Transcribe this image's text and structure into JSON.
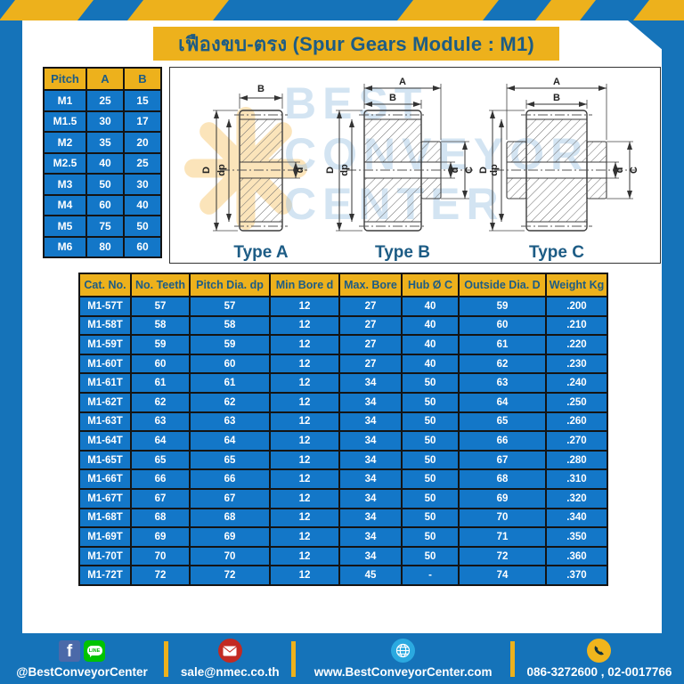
{
  "page": {
    "title": "เฟืองขบ-ตรง (Spur Gears Module : M1)"
  },
  "colors": {
    "frame_blue": "#1573B9",
    "cell_blue": "#1377C8",
    "accent_yellow": "#EDB11C",
    "dark_blue_text": "#1D5C85",
    "table_border": "#141414",
    "facebook_blue": "#4B69A9",
    "line_green": "#00C300",
    "email_red": "#C22A23",
    "globe_blue": "#2BA9E0",
    "phone_yellow": "#F0B51D"
  },
  "pitch_table": {
    "headers": [
      "Pitch",
      "A",
      "B"
    ],
    "rows": [
      [
        "M1",
        "25",
        "15"
      ],
      [
        "M1.5",
        "30",
        "17"
      ],
      [
        "M2",
        "35",
        "20"
      ],
      [
        "M2.5",
        "40",
        "25"
      ],
      [
        "M3",
        "50",
        "30"
      ],
      [
        "M4",
        "60",
        "40"
      ],
      [
        "M5",
        "75",
        "50"
      ],
      [
        "M6",
        "80",
        "60"
      ]
    ]
  },
  "diagrams": {
    "types": [
      {
        "label": "Type A"
      },
      {
        "label": "Type B"
      },
      {
        "label": "Type C"
      }
    ],
    "dims": {
      "A": "A",
      "B": "B",
      "C": "C",
      "D": "D",
      "d": "d",
      "dp": "dp"
    },
    "watermark": {
      "line1": "BEST",
      "line2": "CONVEYOR",
      "line3": "CENTER"
    }
  },
  "main_table": {
    "headers": [
      "Cat. No.",
      "No. Teeth",
      "Pitch Dia. dp",
      "Min Bore d",
      "Max. Bore",
      "Hub Ø C",
      "Outside Dia. D",
      "Weight Kg"
    ],
    "rows": [
      [
        "M1-57T",
        "57",
        "57",
        "12",
        "27",
        "40",
        "59",
        ".200"
      ],
      [
        "M1-58T",
        "58",
        "58",
        "12",
        "27",
        "40",
        "60",
        ".210"
      ],
      [
        "M1-59T",
        "59",
        "59",
        "12",
        "27",
        "40",
        "61",
        ".220"
      ],
      [
        "M1-60T",
        "60",
        "60",
        "12",
        "27",
        "40",
        "62",
        ".230"
      ],
      [
        "M1-61T",
        "61",
        "61",
        "12",
        "34",
        "50",
        "63",
        ".240"
      ],
      [
        "M1-62T",
        "62",
        "62",
        "12",
        "34",
        "50",
        "64",
        ".250"
      ],
      [
        "M1-63T",
        "63",
        "63",
        "12",
        "34",
        "50",
        "65",
        ".260"
      ],
      [
        "M1-64T",
        "64",
        "64",
        "12",
        "34",
        "50",
        "66",
        ".270"
      ],
      [
        "M1-65T",
        "65",
        "65",
        "12",
        "34",
        "50",
        "67",
        ".280"
      ],
      [
        "M1-66T",
        "66",
        "66",
        "12",
        "34",
        "50",
        "68",
        ".310"
      ],
      [
        "M1-67T",
        "67",
        "67",
        "12",
        "34",
        "50",
        "69",
        ".320"
      ],
      [
        "M1-68T",
        "68",
        "68",
        "12",
        "34",
        "50",
        "70",
        ".340"
      ],
      [
        "M1-69T",
        "69",
        "69",
        "12",
        "34",
        "50",
        "71",
        ".350"
      ],
      [
        "M1-70T",
        "70",
        "70",
        "12",
        "34",
        "50",
        "72",
        ".360"
      ],
      [
        "M1-72T",
        "72",
        "72",
        "12",
        "45",
        "-",
        "74",
        ".370"
      ]
    ]
  },
  "footer": {
    "facebook_glyph": "f",
    "line_label": "LINE",
    "social_label": "@BestConveyorCenter",
    "email": "sale@nmec.co.th",
    "website": "www.BestConveyorCenter.com",
    "phones": "086-3272600 , 02-0017766"
  }
}
